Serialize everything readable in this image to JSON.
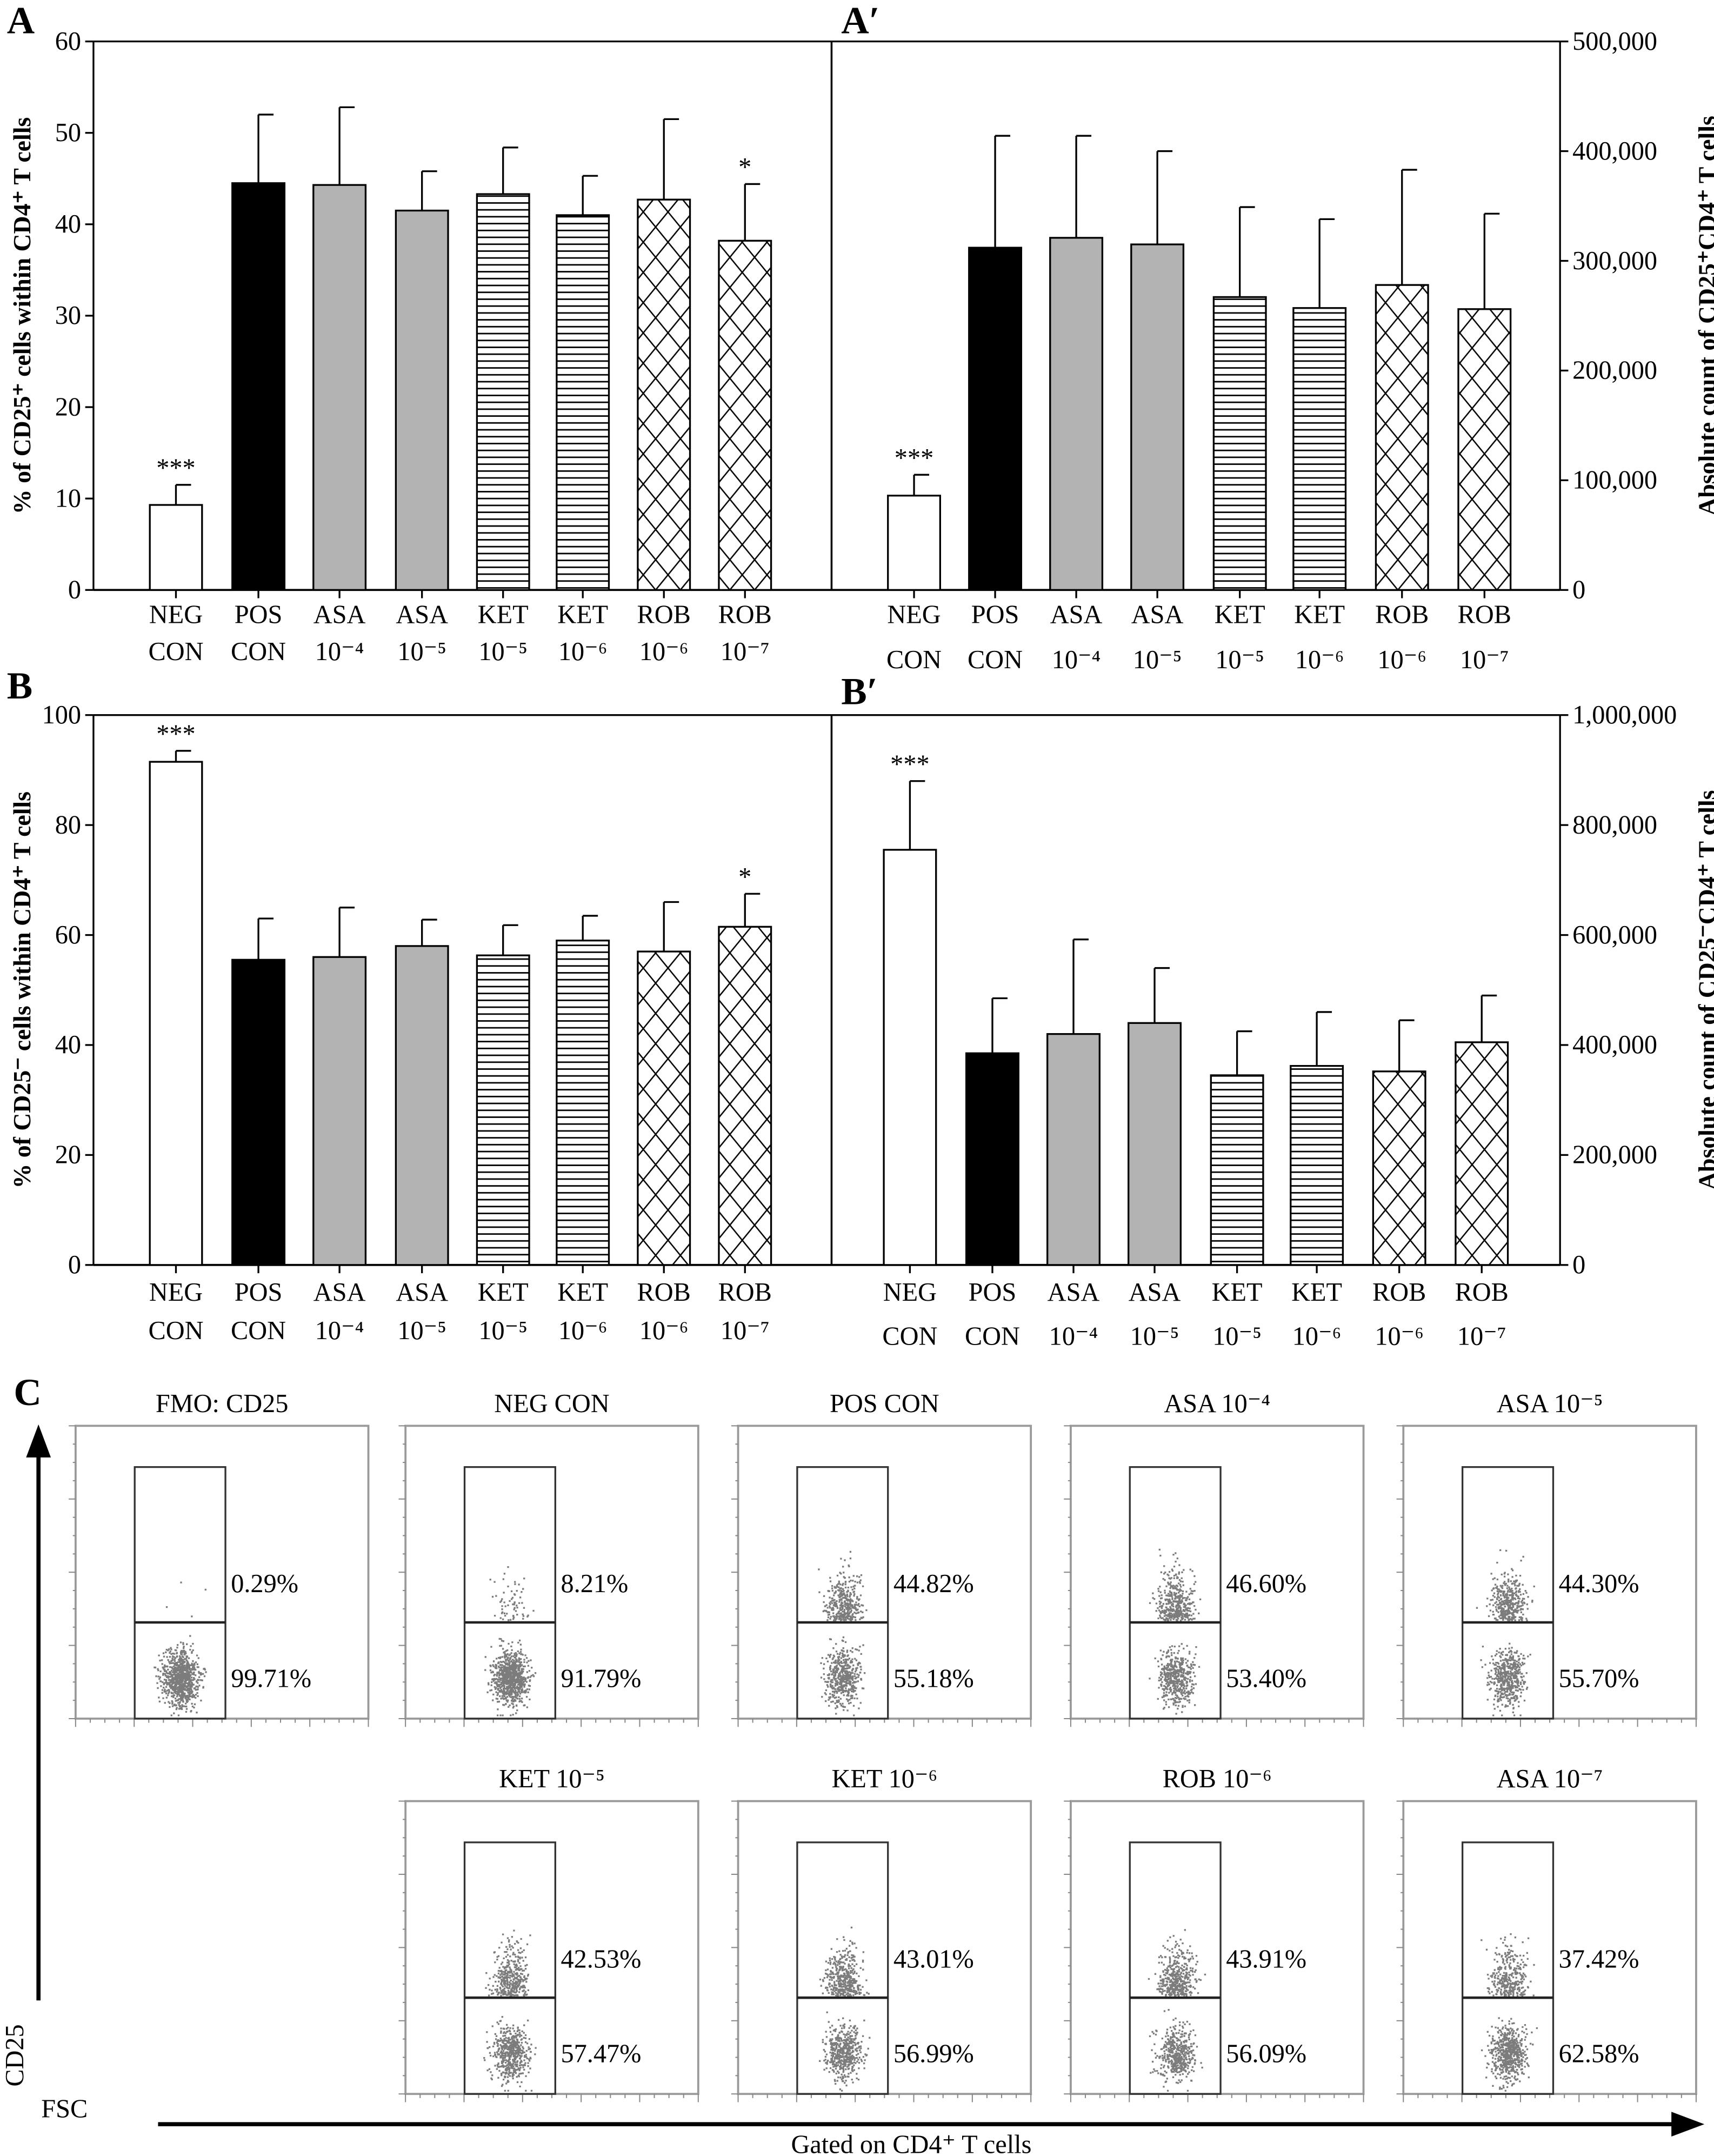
{
  "chart_data": [
    {
      "panel": "A",
      "type": "bar",
      "ylabel": "% of CD25⁺ cells within CD4⁺ T cells",
      "ylim": [
        0,
        60
      ],
      "yticks": [
        0,
        10,
        20,
        30,
        40,
        50,
        60
      ],
      "axis_side": "left",
      "categories": [
        [
          "NEG",
          "CON"
        ],
        [
          "POS",
          "CON"
        ],
        [
          "ASA",
          "10⁻⁴"
        ],
        [
          "ASA",
          "10⁻⁵"
        ],
        [
          "KET",
          "10⁻⁵"
        ],
        [
          "KET",
          "10⁻⁶"
        ],
        [
          "ROB",
          "10⁻⁶"
        ],
        [
          "ROB",
          "10⁻⁷"
        ]
      ],
      "values": [
        9.3,
        44.5,
        44.3,
        41.5,
        43.3,
        41.0,
        42.7,
        38.2
      ],
      "error_upper": [
        11.5,
        52.0,
        52.8,
        45.8,
        48.4,
        45.3,
        51.5,
        44.4
      ],
      "annotations": [
        "***",
        "",
        "",
        "",
        "",
        "",
        "",
        "*"
      ]
    },
    {
      "panel": "A′",
      "type": "bar",
      "ylabel": "Absolute count of CD25⁺CD4⁺ T cells",
      "ylim": [
        0,
        500000
      ],
      "yticks": [
        0,
        100000,
        200000,
        300000,
        400000,
        500000
      ],
      "axis_side": "right",
      "categories": [
        [
          "NEG",
          "CON"
        ],
        [
          "POS",
          "CON"
        ],
        [
          "ASA",
          "10⁻⁴"
        ],
        [
          "ASA",
          "10⁻⁵"
        ],
        [
          "KET",
          "10⁻⁵"
        ],
        [
          "KET",
          "10⁻⁶"
        ],
        [
          "ROB",
          "10⁻⁶"
        ],
        [
          "ROB",
          "10⁻⁷"
        ]
      ],
      "values": [
        86000,
        312000,
        321000,
        315000,
        267000,
        257000,
        278000,
        256000
      ],
      "error_upper": [
        105000,
        414000,
        414000,
        400000,
        349000,
        338000,
        383000,
        343000
      ],
      "annotations": [
        "***",
        "",
        "",
        "",
        "",
        "",
        "",
        ""
      ]
    },
    {
      "panel": "B",
      "type": "bar",
      "ylabel": "% of CD25⁻ cells within CD4⁺ T cells",
      "ylim": [
        0,
        100
      ],
      "yticks": [
        0,
        20,
        40,
        60,
        80,
        100
      ],
      "axis_side": "left",
      "categories": [
        [
          "NEG",
          "CON"
        ],
        [
          "POS",
          "CON"
        ],
        [
          "ASA",
          "10⁻⁴"
        ],
        [
          "ASA",
          "10⁻⁵"
        ],
        [
          "KET",
          "10⁻⁵"
        ],
        [
          "KET",
          "10⁻⁶"
        ],
        [
          "ROB",
          "10⁻⁶"
        ],
        [
          "ROB",
          "10⁻⁷"
        ]
      ],
      "values": [
        91.5,
        55.5,
        56.0,
        58.0,
        56.3,
        59.0,
        57.0,
        61.5
      ],
      "error_upper": [
        93.5,
        63.0,
        65.0,
        62.8,
        61.8,
        63.5,
        66.0,
        67.5
      ],
      "annotations": [
        "***",
        "",
        "",
        "",
        "",
        "",
        "",
        "*"
      ]
    },
    {
      "panel": "B′",
      "type": "bar",
      "ylabel": "Absolute count of CD25⁻CD4⁺ T cells",
      "ylim": [
        0,
        1000000
      ],
      "yticks": [
        0,
        200000,
        400000,
        600000,
        800000,
        1000000
      ],
      "axis_side": "right",
      "categories": [
        [
          "NEG",
          "CON"
        ],
        [
          "POS",
          "CON"
        ],
        [
          "ASA",
          "10⁻⁴"
        ],
        [
          "ASA",
          "10⁻⁵"
        ],
        [
          "KET",
          "10⁻⁵"
        ],
        [
          "KET",
          "10⁻⁶"
        ],
        [
          "ROB",
          "10⁻⁶"
        ],
        [
          "ROB",
          "10⁻⁷"
        ]
      ],
      "values": [
        755000,
        385000,
        420000,
        440000,
        345000,
        362000,
        352000,
        405000
      ],
      "error_upper": [
        880000,
        485000,
        592000,
        540000,
        425000,
        460000,
        445000,
        490000
      ],
      "annotations": [
        "***",
        "",
        "",
        "",
        "",
        "",
        "",
        ""
      ]
    }
  ],
  "bar_styles": [
    "white",
    "black",
    "gray",
    "gray",
    "horizontal-lines",
    "horizontal-lines",
    "crosshatch",
    "crosshatch"
  ],
  "colors": {
    "black": "#000000",
    "gray": "#b3b3b3",
    "white": "#ffffff",
    "flow_frame": "#9a9a9a"
  },
  "panel_c": {
    "letter": "C",
    "y_axis_label": "CD25",
    "x_axis_label": "FSC",
    "footer": "Gated on CD4⁺ T cells",
    "plots": [
      {
        "title": "FMO: CD25",
        "upper": "0.29%",
        "lower": "99.71%"
      },
      {
        "title": "NEG CON",
        "upper": "8.21%",
        "lower": "91.79%"
      },
      {
        "title": "POS CON",
        "upper": "44.82%",
        "lower": "55.18%"
      },
      {
        "title": "ASA 10⁻⁴",
        "upper": "46.60%",
        "lower": "53.40%"
      },
      {
        "title": "ASA 10⁻⁵",
        "upper": "44.30%",
        "lower": "55.70%"
      },
      {
        "title": "KET 10⁻⁵",
        "upper": "42.53%",
        "lower": "57.47%"
      },
      {
        "title": "KET 10⁻⁶",
        "upper": "43.01%",
        "lower": "56.99%"
      },
      {
        "title": "ROB 10⁻⁶",
        "upper": "43.91%",
        "lower": "56.09%"
      },
      {
        "title": "ASA 10⁻⁷",
        "upper": "37.42%",
        "lower": "62.58%"
      }
    ]
  }
}
